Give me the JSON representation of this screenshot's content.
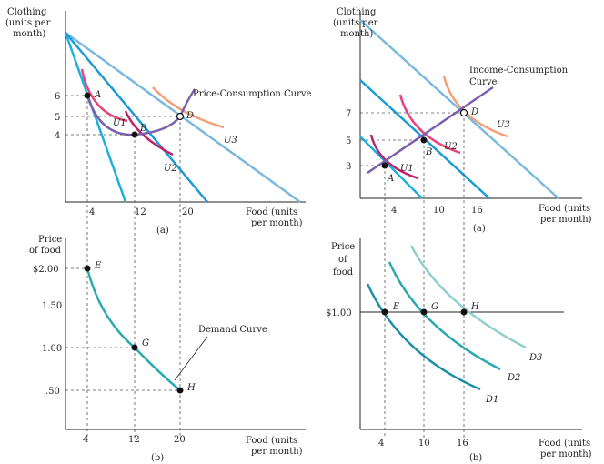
{
  "left": {
    "top_panel": {
      "y_axis_label": [
        "Clothing",
        "(units per",
        "month)"
      ],
      "x_axis_label": [
        "Food (units",
        "per month)"
      ],
      "panel_label": "(a)",
      "x_ticks": [
        "4",
        "12",
        "20"
      ],
      "y_ticks": [
        "6",
        "5",
        "4"
      ],
      "points": [
        "A",
        "B",
        "D"
      ],
      "curve_labels": [
        "U1",
        "U2",
        "U3"
      ],
      "price_consumption_label": "Price-Consumption Curve"
    },
    "bottom_panel": {
      "y_axis_label": [
        "Price",
        "of food"
      ],
      "x_axis_label": [
        "Food (units",
        "per month)"
      ],
      "panel_label": "(b)",
      "x_ticks": [
        "4",
        "12",
        "20"
      ],
      "y_ticks": [
        "$2.00",
        "1.50",
        "1.00",
        ".50"
      ],
      "points": [
        "E",
        "G",
        "H"
      ],
      "demand_label": "Demand Curve"
    }
  },
  "right": {
    "top_panel": {
      "y_axis_label": [
        "Clothing",
        "(units per",
        "month)"
      ],
      "x_axis_label": [
        "Food (units",
        "per month)"
      ],
      "panel_label": "(a)",
      "x_ticks": [
        "4",
        "10",
        "16"
      ],
      "y_ticks": [
        "7",
        "5",
        "3"
      ],
      "points": [
        "A",
        "B",
        "D"
      ],
      "curve_labels": [
        "U1",
        "U2",
        "U3"
      ],
      "income_consumption_label": [
        "Income-Consumption",
        "Curve"
      ]
    },
    "bottom_panel": {
      "y_axis_label": [
        "Price",
        "of",
        "food"
      ],
      "x_axis_label": [
        "Food (units",
        "per month)"
      ],
      "panel_label": "(b)",
      "x_ticks": [
        "4",
        "10",
        "16"
      ],
      "y_ticks": [
        "$1.00"
      ],
      "points": [
        "E",
        "G",
        "H"
      ],
      "demand_labels": [
        "D3",
        "D2",
        "D1"
      ]
    }
  },
  "colors": {
    "budget_light": "#7ab8e0",
    "budget_dark": "#1b9bd6",
    "u1": "#e8447a",
    "u2": "#c0226a",
    "u3": "#f2a07a",
    "path": "#7b5fb0",
    "demand": "#27a9b0",
    "demand_light": "#8fd0cf"
  }
}
